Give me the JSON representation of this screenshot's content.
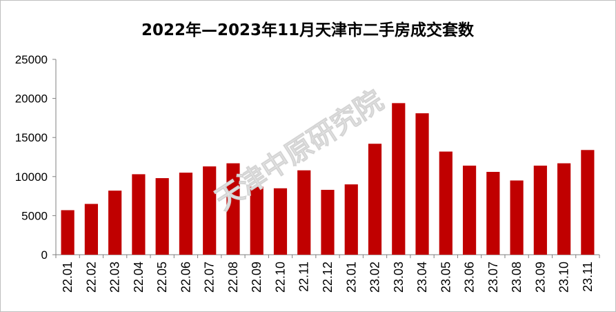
{
  "chart_data": {
    "type": "bar",
    "title": "2022年—2023年11月天津市二手房成交套数",
    "xlabel": "",
    "ylabel": "",
    "ylim": [
      0,
      25000
    ],
    "yticks": [
      "0",
      "5000",
      "10000",
      "15000",
      "20000",
      "25000"
    ],
    "grid": false,
    "legend": "none",
    "bar_color": "#c00000",
    "watermark": "天津中原研究院",
    "categories": [
      "22.01",
      "22.02",
      "22.03",
      "22.04",
      "22.05",
      "22.06",
      "22.07",
      "22.08",
      "22.09",
      "22.10",
      "22.11",
      "22.12",
      "23.01",
      "23.02",
      "23.03",
      "23.04",
      "23.05",
      "23.06",
      "23.07",
      "23.08",
      "23.09",
      "23.10",
      "23.11"
    ],
    "values": [
      5700,
      6500,
      8200,
      10300,
      9800,
      10500,
      11300,
      11700,
      8700,
      8500,
      10800,
      8300,
      9000,
      14200,
      19400,
      18100,
      13200,
      11400,
      10600,
      9500,
      11400,
      11700,
      13400
    ]
  }
}
